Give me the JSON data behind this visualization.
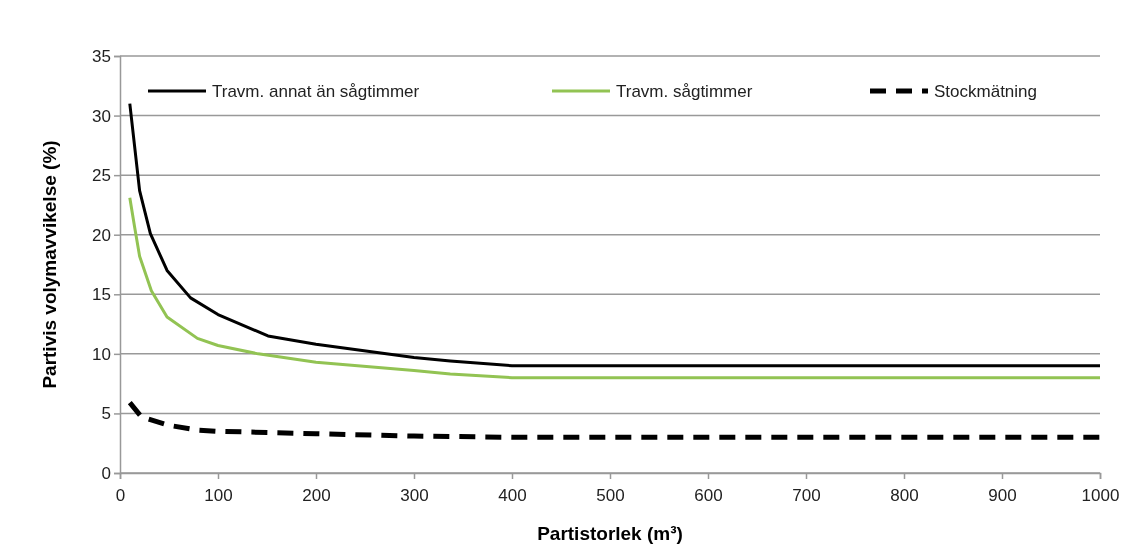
{
  "chart_data": {
    "type": "line",
    "xlabel": "Partistorlek (m³)",
    "ylabel": "Partivis volymavvikelse (%)",
    "xlim": [
      0,
      1000
    ],
    "xticks": [
      0,
      100,
      200,
      300,
      400,
      500,
      600,
      700,
      800,
      900,
      1000
    ],
    "ylim": [
      0,
      35
    ],
    "yticks": [
      0,
      5,
      10,
      15,
      20,
      25,
      30,
      35
    ],
    "grid": "y",
    "legend": "top",
    "marker": "none",
    "series": [
      {
        "name": "Travm. annat än sågtimmer",
        "color": "#000000",
        "line_style": "solid",
        "x": [
          10,
          20,
          31,
          48,
          72,
          100,
          151,
          200,
          300,
          337,
          400,
          1000
        ],
        "values": [
          31,
          23.7,
          20.1,
          17,
          14.7,
          13.3,
          11.5,
          10.8,
          9.7,
          9.4,
          9,
          9
        ]
      },
      {
        "name": "Travm. sågtimmer",
        "color": "#92c353",
        "line_style": "solid",
        "x": [
          10,
          15,
          20,
          32,
          48,
          79,
          100,
          141,
          200,
          300,
          337,
          400,
          1000
        ],
        "values": [
          23.1,
          20.6,
          18.2,
          15.3,
          13.1,
          11.3,
          10.7,
          10,
          9.3,
          8.6,
          8.3,
          8,
          8
        ]
      },
      {
        "name": "Stockmätning",
        "color": "#000000",
        "line_style": "dashed",
        "x": [
          10,
          22,
          50,
          80,
          100,
          200,
          300,
          400,
          1000
        ],
        "values": [
          5.9,
          4.7,
          4,
          3.6,
          3.5,
          3.3,
          3.1,
          3,
          3
        ]
      }
    ]
  }
}
